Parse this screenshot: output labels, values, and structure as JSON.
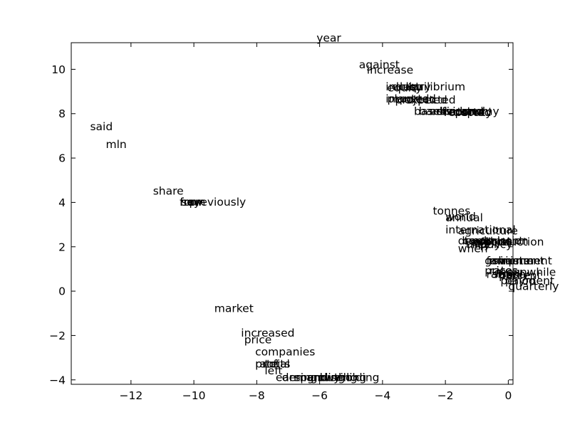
{
  "chart_data": {
    "type": "scatter",
    "title": "",
    "xlabel": "",
    "ylabel": "",
    "xlim": [
      -13.9,
      0.15
    ],
    "ylim": [
      -4.2,
      11.2
    ],
    "xticks": [
      -12,
      -10,
      -8,
      -6,
      -4,
      -2,
      0
    ],
    "yticks": [
      -4,
      -2,
      0,
      2,
      4,
      6,
      8,
      10
    ],
    "xtick_labels": [
      "−12",
      "−10",
      "−8",
      "−6",
      "−4",
      "−2",
      "0"
    ],
    "ytick_labels": [
      "−4",
      "−2",
      "0",
      "2",
      "4",
      "6",
      "8",
      "10"
    ],
    "grid": false,
    "legend": "none",
    "points": [
      {
        "label": "year",
        "x": -6.1,
        "y": 11.25
      },
      {
        "label": "against",
        "x": -4.75,
        "y": 10.05
      },
      {
        "label": "increase",
        "x": -4.5,
        "y": 9.8
      },
      {
        "label": "industry",
        "x": -3.9,
        "y": 9.05
      },
      {
        "label": "equity",
        "x": -3.85,
        "y": 9.0
      },
      {
        "label": "dollar",
        "x": -3.7,
        "y": 9.05
      },
      {
        "label": "equilibrium",
        "x": -3.35,
        "y": 9.05
      },
      {
        "label": "imported",
        "x": -3.9,
        "y": 8.5
      },
      {
        "label": "projected",
        "x": -3.6,
        "y": 8.45
      },
      {
        "label": "planted",
        "x": -3.85,
        "y": 8.5
      },
      {
        "label": "expected",
        "x": -3.3,
        "y": 8.45
      },
      {
        "label": "based",
        "x": -3.0,
        "y": 7.95
      },
      {
        "label": "banks",
        "x": -2.85,
        "y": 7.95
      },
      {
        "label": "estimated",
        "x": -2.5,
        "y": 7.95
      },
      {
        "label": "dividend",
        "x": -2.3,
        "y": 7.95
      },
      {
        "label": "reported",
        "x": -2.05,
        "y": 7.9
      },
      {
        "label": "economy",
        "x": -1.9,
        "y": 7.95
      },
      {
        "label": "deputy",
        "x": -1.75,
        "y": 7.9
      },
      {
        "label": "said",
        "x": -13.3,
        "y": 7.25
      },
      {
        "label": "mln",
        "x": -12.8,
        "y": 6.45
      },
      {
        "label": "share",
        "x": -11.3,
        "y": 4.35
      },
      {
        "label": "from",
        "x": -10.45,
        "y": 3.85
      },
      {
        "label": "for",
        "x": -10.45,
        "y": 3.85
      },
      {
        "label": "new",
        "x": -10.45,
        "y": 3.85
      },
      {
        "label": "say",
        "x": -10.4,
        "y": 3.85
      },
      {
        "label": "previously",
        "x": -10.15,
        "y": 3.85
      },
      {
        "label": "tonnes",
        "x": -2.4,
        "y": 3.45
      },
      {
        "label": "world",
        "x": -2.0,
        "y": 3.2
      },
      {
        "label": "annual",
        "x": -2.0,
        "y": 3.15
      },
      {
        "label": "international",
        "x": -2.0,
        "y": 2.6
      },
      {
        "label": "agriculture",
        "x": -1.6,
        "y": 2.55
      },
      {
        "label": "department",
        "x": -1.6,
        "y": 2.1
      },
      {
        "label": "commission",
        "x": -1.45,
        "y": 2.1
      },
      {
        "label": "trade",
        "x": -1.4,
        "y": 2.1
      },
      {
        "label": "exports",
        "x": -1.2,
        "y": 2.05
      },
      {
        "label": "official",
        "x": -1.1,
        "y": 2.05
      },
      {
        "label": "production",
        "x": -0.75,
        "y": 2.05
      },
      {
        "label": "when",
        "x": -1.6,
        "y": 1.75
      },
      {
        "label": "they",
        "x": -1.35,
        "y": 1.95
      },
      {
        "label": "likely",
        "x": -1.15,
        "y": 1.95
      },
      {
        "label": "policy",
        "x": -0.9,
        "y": 1.95
      },
      {
        "label": "government",
        "x": -0.75,
        "y": 1.2
      },
      {
        "label": "farmers",
        "x": -0.7,
        "y": 1.2
      },
      {
        "label": "minister",
        "x": -0.6,
        "y": 1.2
      },
      {
        "label": "shipment",
        "x": -0.5,
        "y": 1.2
      },
      {
        "label": "prices",
        "x": -0.75,
        "y": 0.75
      },
      {
        "label": "raised",
        "x": -0.7,
        "y": 0.6
      },
      {
        "label": "rates",
        "x": -0.6,
        "y": 0.75
      },
      {
        "label": "supply",
        "x": -0.5,
        "y": 0.6
      },
      {
        "label": "meanwhile",
        "x": -0.4,
        "y": 0.7
      },
      {
        "label": "percent",
        "x": -0.3,
        "y": 0.55
      },
      {
        "label": "rose",
        "x": -0.2,
        "y": 0.6
      },
      {
        "label": "period",
        "x": -0.25,
        "y": 0.3
      },
      {
        "label": "payment",
        "x": -0.1,
        "y": 0.3
      },
      {
        "label": "quarterly",
        "x": 0.0,
        "y": 0.05
      },
      {
        "label": "market",
        "x": -9.35,
        "y": -0.95
      },
      {
        "label": "increased",
        "x": -8.5,
        "y": -2.05
      },
      {
        "label": "price",
        "x": -8.4,
        "y": -2.35
      },
      {
        "label": "companies",
        "x": -8.05,
        "y": -2.9
      },
      {
        "label": "profits",
        "x": -8.05,
        "y": -3.45
      },
      {
        "label": "rate",
        "x": -8.05,
        "y": -3.45
      },
      {
        "label": "total",
        "x": -7.75,
        "y": -3.45
      },
      {
        "label": "left",
        "x": -7.75,
        "y": -3.75
      },
      {
        "label": "earnings",
        "x": -7.4,
        "y": -4.05
      },
      {
        "label": "demand",
        "x": -7.2,
        "y": -4.05
      },
      {
        "label": "spending",
        "x": -6.8,
        "y": -4.05
      },
      {
        "label": "growth",
        "x": -6.4,
        "y": -4.05
      },
      {
        "label": "buying",
        "x": -6.0,
        "y": -4.05
      },
      {
        "label": "selling",
        "x": -5.65,
        "y": -4.05
      },
      {
        "label": "holding",
        "x": -5.4,
        "y": -4.05
      }
    ]
  }
}
